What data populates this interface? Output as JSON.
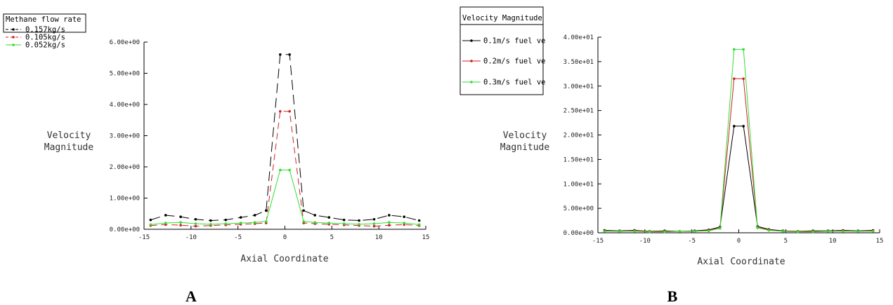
{
  "chart_data": [
    {
      "id": "A",
      "type": "line",
      "panel_label": "A",
      "xlabel": "Axial Coordinate",
      "ylabel": [
        "Velocity",
        "Magnitude"
      ],
      "xlim": [
        -15,
        15
      ],
      "ylim": [
        0,
        6
      ],
      "x_ticks": [
        -15,
        -10,
        -5,
        0,
        5,
        10,
        15
      ],
      "y_ticks": [
        0,
        1,
        2,
        3,
        4,
        5,
        6
      ],
      "y_tick_labels": [
        "0.00e+00",
        "1.00e+00",
        "2.00e+00",
        "3.00e+00",
        "4.00e+00",
        "5.00e+00",
        "6.00e+00"
      ],
      "grid": false,
      "legend_title": "Methane flow rate",
      "legend_position": "top-left",
      "x": [
        -14.3,
        -12.7,
        -11.1,
        -9.5,
        -7.9,
        -6.3,
        -4.7,
        -3.2,
        -2.0,
        -0.5,
        0.5,
        2.0,
        3.2,
        4.7,
        6.3,
        7.9,
        9.5,
        11.1,
        12.7,
        14.3
      ],
      "series": [
        {
          "name": "0.157kg/s",
          "color": "#000000",
          "dash": "14,7",
          "values": [
            0.3,
            0.45,
            0.4,
            0.32,
            0.28,
            0.3,
            0.38,
            0.45,
            0.6,
            5.6,
            5.6,
            0.6,
            0.45,
            0.38,
            0.3,
            0.28,
            0.32,
            0.45,
            0.4,
            0.28
          ]
        },
        {
          "name": "0.105kg/s",
          "color": "#cc2222",
          "dash": "9,6",
          "values": [
            0.12,
            0.15,
            0.13,
            0.1,
            0.12,
            0.14,
            0.16,
            0.18,
            0.2,
            3.78,
            3.78,
            0.2,
            0.18,
            0.16,
            0.14,
            0.12,
            0.1,
            0.13,
            0.15,
            0.12
          ]
        },
        {
          "name": "0.052kg/s",
          "color": "#33dd33",
          "dash": "",
          "values": [
            0.15,
            0.2,
            0.22,
            0.18,
            0.16,
            0.18,
            0.2,
            0.22,
            0.25,
            1.9,
            1.9,
            0.25,
            0.22,
            0.2,
            0.18,
            0.16,
            0.18,
            0.22,
            0.2,
            0.15
          ]
        }
      ]
    },
    {
      "id": "B",
      "type": "line",
      "panel_label": "B",
      "xlabel": "Axial Coordinate",
      "ylabel": [
        "Velocity",
        "Magnitude"
      ],
      "xlim": [
        -15,
        15
      ],
      "ylim": [
        0,
        40
      ],
      "x_ticks": [
        -15,
        -10,
        -5,
        0,
        5,
        10,
        15
      ],
      "y_ticks": [
        0,
        5,
        10,
        15,
        20,
        25,
        30,
        35,
        40
      ],
      "y_tick_labels": [
        "0.00e+00",
        "5.00e+00",
        "1.00e+01",
        "1.50e+01",
        "2.00e+01",
        "2.50e+01",
        "3.00e+01",
        "3.50e+01",
        "4.00e+01"
      ],
      "grid": false,
      "legend_title": "Velocity Magnitude",
      "legend_position": "top-left",
      "x": [
        -14.3,
        -12.7,
        -11.1,
        -9.5,
        -7.9,
        -6.3,
        -4.7,
        -3.2,
        -2.0,
        -0.5,
        0.5,
        2.0,
        3.2,
        4.7,
        6.3,
        7.9,
        9.5,
        11.1,
        12.7,
        14.3
      ],
      "series": [
        {
          "name": "0.1m/s fuel ve",
          "color": "#000000",
          "dash": "",
          "values": [
            0.5,
            0.4,
            0.5,
            0.3,
            0.4,
            0.3,
            0.4,
            0.6,
            1.2,
            21.8,
            21.8,
            1.3,
            0.7,
            0.4,
            0.3,
            0.4,
            0.4,
            0.5,
            0.4,
            0.5
          ]
        },
        {
          "name": "0.2m/s fuel ve",
          "color": "#cc2222",
          "dash": "",
          "values": [
            0.4,
            0.3,
            0.4,
            0.3,
            0.3,
            0.3,
            0.3,
            0.5,
            1.0,
            31.5,
            31.5,
            1.1,
            0.6,
            0.3,
            0.3,
            0.3,
            0.3,
            0.4,
            0.3,
            0.4
          ]
        },
        {
          "name": "0.3m/s fuel ve",
          "color": "#33dd33",
          "dash": "",
          "values": [
            0.3,
            0.3,
            0.3,
            0.2,
            0.2,
            0.3,
            0.3,
            0.4,
            0.9,
            37.5,
            37.5,
            1.0,
            0.5,
            0.3,
            0.2,
            0.2,
            0.3,
            0.3,
            0.3,
            0.3
          ]
        }
      ]
    }
  ]
}
